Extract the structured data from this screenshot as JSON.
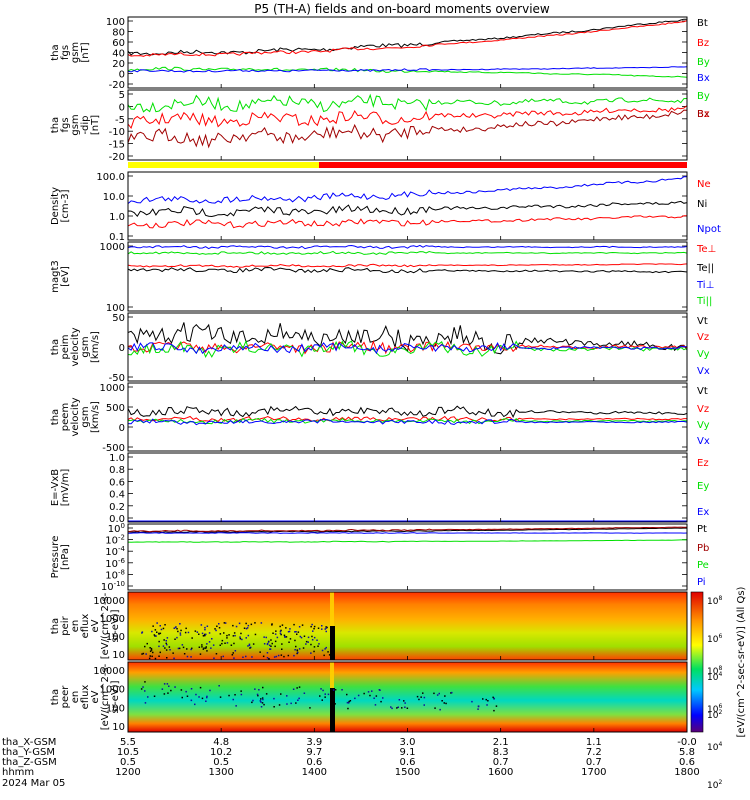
{
  "title": "P5 (TH-A) fields and on-board moments overview",
  "colors": {
    "black": "#000000",
    "red": "#ff0000",
    "green": "#00e000",
    "blue": "#0000ff",
    "darkred": "#a00000",
    "yellow": "#ffff00",
    "ylab_red": "#d00000"
  },
  "x_axis": {
    "rows": [
      {
        "label": "tha_X-GSM",
        "values": [
          "5.5",
          "4.8",
          "3.9",
          "3.0",
          "2.1",
          "1.1",
          "-0.0"
        ]
      },
      {
        "label": "tha_Y-GSM",
        "values": [
          "10.5",
          "10.2",
          "9.7",
          "9.1",
          "8.3",
          "7.2",
          "5.8"
        ]
      },
      {
        "label": "tha_Z-GSM",
        "values": [
          "0.5",
          "0.5",
          "0.6",
          "0.6",
          "0.7",
          "0.7",
          "0.6"
        ]
      },
      {
        "label": "hhmm",
        "values": [
          "1200",
          "1300",
          "1400",
          "1500",
          "1600",
          "1700",
          "1800"
        ]
      }
    ],
    "date": "2024 Mar 05",
    "time_range": [
      1200,
      1800
    ]
  },
  "colorbar": {
    "label": "[eV/(cm^2-sec-sr-eV)] (All Qs)",
    "ticks": [
      "10^8",
      "10^6",
      "10^4",
      "10^2"
    ]
  },
  "chart_data": [
    {
      "type": "line",
      "panel": "fgs_dsl",
      "ylabel": [
        "tha",
        "fgs",
        "gsm",
        "[nT]"
      ],
      "ylim": [
        -30,
        100
      ],
      "ticks": [
        "100",
        "80",
        "60",
        "40",
        "20",
        "0",
        "-20"
      ],
      "series": [
        {
          "name": "Bt",
          "color": "#000000"
        },
        {
          "name": "Bz",
          "color": "#ff0000"
        },
        {
          "name": "By",
          "color": "#00e000"
        },
        {
          "name": "Bx",
          "color": "#0000ff"
        }
      ]
    },
    {
      "type": "line",
      "panel": "fgs_gsm_dtrend",
      "ylabel": [
        "tha",
        "fgs",
        "gsm",
        "-dip",
        "[nT]"
      ],
      "ylim": [
        -22,
        8
      ],
      "ticks": [
        "5",
        "0",
        "-5",
        "-10",
        "-15",
        "-20"
      ],
      "series": [
        {
          "name": "By",
          "color": "#00e000"
        },
        {
          "name": "Bz",
          "color": "#ff0000"
        },
        {
          "name": "Bx",
          "color": "#a00000"
        }
      ]
    },
    {
      "type": "bar",
      "panel": "mode_bar",
      "segments": [
        {
          "from": 1200,
          "to": 1405,
          "color": "#ffff00"
        },
        {
          "from": 1405,
          "to": 1800,
          "color": "#ff0000"
        }
      ]
    },
    {
      "type": "line",
      "panel": "density",
      "ylabel": [
        "Density",
        "[cm-3]"
      ],
      "yscale": "log",
      "ylim": [
        0.05,
        120
      ],
      "ticks": [
        "100.0",
        "10.0",
        "1.0",
        "0.1"
      ],
      "series": [
        {
          "name": "Ne",
          "color": "#ff0000"
        },
        {
          "name": "Ni",
          "color": "#000000"
        },
        {
          "name": "Npot",
          "color": "#0000ff"
        }
      ]
    },
    {
      "type": "line",
      "panel": "temperature",
      "ylabel": [
        "magt3",
        "[eV]"
      ],
      "yscale": "log",
      "ylim": [
        30,
        3000
      ],
      "ticks": [
        "1000",
        "100"
      ],
      "series": [
        {
          "name": "Te⊥",
          "color": "#ff0000"
        },
        {
          "name": "Te||",
          "color": "#000000"
        },
        {
          "name": "Ti⊥",
          "color": "#0000ff"
        },
        {
          "name": "Ti||",
          "color": "#00e000"
        }
      ]
    },
    {
      "type": "line",
      "panel": "peim_velocity",
      "ylabel": [
        "tha",
        "peim",
        "velocity",
        "gsm",
        "[km/s]"
      ],
      "ylim": [
        -75,
        90
      ],
      "ticks": [
        "50",
        "0",
        "-50"
      ],
      "series": [
        {
          "name": "Vt",
          "color": "#000000"
        },
        {
          "name": "Vz",
          "color": "#ff0000"
        },
        {
          "name": "Vy",
          "color": "#00e000"
        },
        {
          "name": "Vx",
          "color": "#0000ff"
        }
      ]
    },
    {
      "type": "line",
      "panel": "peem_velocity",
      "ylabel": [
        "tha",
        "peem",
        "velocity",
        "gsm",
        "[km/s]"
      ],
      "ylim": [
        -600,
        1300
      ],
      "ticks": [
        "1000",
        "500",
        "0",
        "-500"
      ],
      "series": [
        {
          "name": "Vt",
          "color": "#000000"
        },
        {
          "name": "Vz",
          "color": "#ff0000"
        },
        {
          "name": "Vy",
          "color": "#00e000"
        },
        {
          "name": "Vx",
          "color": "#0000ff"
        }
      ]
    },
    {
      "type": "line",
      "panel": "efield",
      "ylabel": [
        "E=-VxB",
        "[mV/m]"
      ],
      "ylim": [
        0,
        1
      ],
      "ticks": [
        "1.0",
        "0.8",
        "0.6",
        "0.4",
        "0.2",
        "0.0"
      ],
      "series": [
        {
          "name": "Ez",
          "color": "#ff0000"
        },
        {
          "name": "Ey",
          "color": "#00e000"
        },
        {
          "name": "Ex",
          "color": "#0000ff"
        }
      ]
    },
    {
      "type": "line",
      "panel": "pressure",
      "ylabel": [
        "Pressure",
        "[nPa]"
      ],
      "yscale": "log",
      "ylim": [
        1e-11,
        10
      ],
      "ticks": [
        "10^0",
        "10^-2",
        "10^-4",
        "10^-6",
        "10^-8",
        "10^-10"
      ],
      "series": [
        {
          "name": "Pt",
          "color": "#000000"
        },
        {
          "name": "Pb",
          "color": "#a00000"
        },
        {
          "name": "Pe",
          "color": "#00e000"
        },
        {
          "name": "Pi",
          "color": "#0000ff"
        }
      ]
    },
    {
      "type": "heatmap",
      "panel": "peir",
      "ylabel": [
        "tha",
        "peir",
        "en",
        "eflux",
        "eV",
        "[eV/(cm^2-s-",
        "sr-eV)]"
      ],
      "yscale": "log",
      "ticks": [
        "10000",
        "1000",
        "100",
        "10"
      ]
    },
    {
      "type": "heatmap",
      "panel": "peer",
      "ylabel": [
        "tha",
        "peer",
        "en",
        "eflux",
        "eV",
        "[eV/(cm^2-s-",
        "sr-eV)]"
      ],
      "yscale": "log",
      "ticks": [
        "10000",
        "1000",
        "100",
        "10"
      ]
    }
  ]
}
